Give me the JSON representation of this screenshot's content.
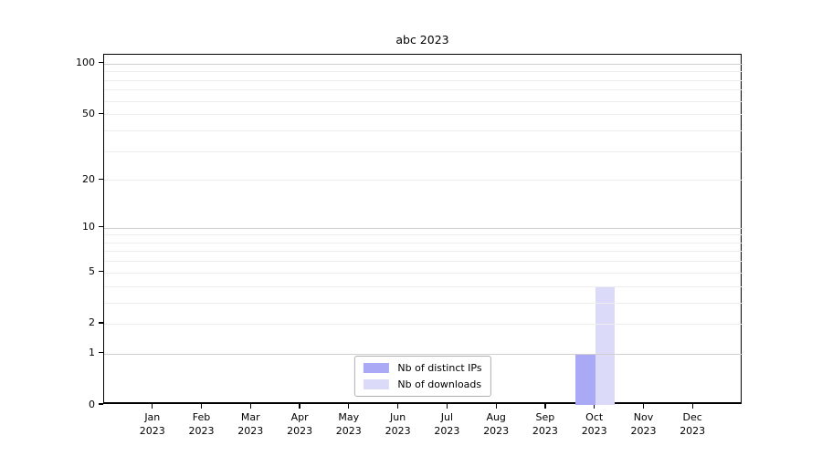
{
  "chart_data": {
    "type": "bar",
    "title": "abc 2023",
    "categories": [
      "Jan 2023",
      "Feb 2023",
      "Mar 2023",
      "Apr 2023",
      "May 2023",
      "Jun 2023",
      "Jul 2023",
      "Aug 2023",
      "Sep 2023",
      "Oct 2023",
      "Nov 2023",
      "Dec 2023"
    ],
    "series": [
      {
        "name": "Nb of distinct IPs",
        "color": "#a9a9f5",
        "values": [
          0,
          0,
          0,
          0,
          0,
          0,
          0,
          0,
          0,
          1,
          0,
          0
        ]
      },
      {
        "name": "Nb of downloads",
        "color": "#dbdbf9",
        "values": [
          0,
          0,
          0,
          0,
          0,
          0,
          0,
          0,
          0,
          4,
          0,
          0
        ]
      }
    ],
    "xlabel": "",
    "ylabel": "",
    "y_scale": "log1p",
    "ylim": [
      0,
      113
    ],
    "y_axis": {
      "tick_values": [
        0,
        1,
        2,
        5,
        10,
        20,
        50,
        100
      ],
      "major_grid_values": [
        1,
        10,
        100
      ],
      "minor_grid_values": [
        2,
        3,
        4,
        5,
        6,
        7,
        8,
        9,
        20,
        30,
        40,
        50,
        60,
        70,
        80,
        90
      ]
    },
    "grid": true,
    "grid_above_bars": true,
    "legend_position": "lower center",
    "colors": {
      "major_grid": "#cfcfcf",
      "minor_grid": "#ededed",
      "spine": "#000000",
      "text": "#000000",
      "background": "#ffffff",
      "legend_border": "#b0b0b0"
    }
  }
}
